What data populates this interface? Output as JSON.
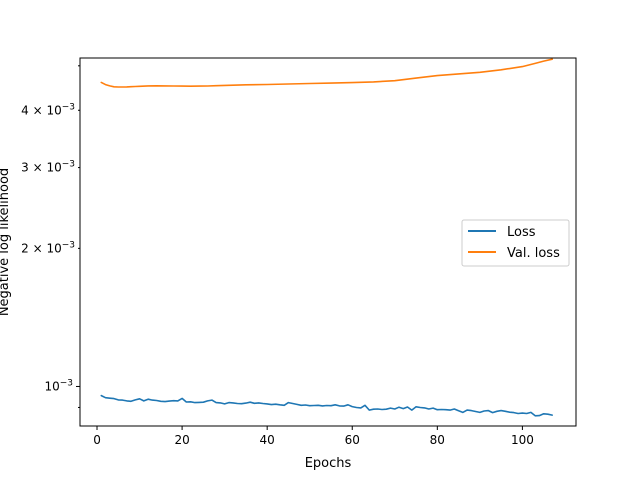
{
  "chart_data": {
    "type": "line",
    "xlabel": "Epochs",
    "ylabel": "Negative log likelihood",
    "y_scale": "log",
    "xlim": [
      -4,
      112.6
    ],
    "ylim": [
      0.00082,
      0.0052
    ],
    "x_ticks": [
      0,
      20,
      40,
      60,
      80,
      100
    ],
    "x_tick_labels": [
      "0",
      "20",
      "40",
      "60",
      "80",
      "100"
    ],
    "y_major_ticks": [
      0.001
    ],
    "y_major_labels": [
      "10",
      "−3"
    ],
    "y_minor_ticks": [
      0.0009,
      0.002,
      0.003,
      0.004,
      0.005
    ],
    "y_minor_labels": [
      {
        "value": 0.002,
        "mantissa": "2 × 10",
        "exp": "−3"
      },
      {
        "value": 0.003,
        "mantissa": "3 × 10",
        "exp": "−3"
      },
      {
        "value": 0.004,
        "mantissa": "4 × 10",
        "exp": "−3"
      }
    ],
    "legend_placement": "center-right",
    "grid": false,
    "series": [
      {
        "name": "Loss",
        "color": "#1f77b4",
        "x": [
          1,
          2,
          3,
          4,
          5,
          6,
          7,
          8,
          9,
          10,
          11,
          12,
          13,
          14,
          15,
          16,
          17,
          18,
          19,
          20,
          21,
          22,
          23,
          24,
          25,
          26,
          27,
          28,
          29,
          30,
          31,
          32,
          33,
          34,
          35,
          36,
          37,
          38,
          39,
          40,
          41,
          42,
          43,
          44,
          45,
          46,
          47,
          48,
          49,
          50,
          51,
          52,
          53,
          54,
          55,
          56,
          57,
          58,
          59,
          60,
          61,
          62,
          63,
          64,
          65,
          66,
          67,
          68,
          69,
          70,
          71,
          72,
          73,
          74,
          75,
          76,
          77,
          78,
          79,
          80,
          81,
          82,
          83,
          84,
          85,
          86,
          87,
          88,
          89,
          90,
          91,
          92,
          93,
          94,
          95,
          96,
          97,
          98,
          99,
          100,
          101,
          102,
          103,
          104,
          105,
          106,
          107
        ],
        "values": [
          0.000955,
          0.000945,
          0.000943,
          0.000941,
          0.000935,
          0.000934,
          0.00093,
          0.000928,
          0.000935,
          0.00094,
          0.00093,
          0.000938,
          0.000934,
          0.000932,
          0.000928,
          0.000927,
          0.000929,
          0.000931,
          0.00093,
          0.000942,
          0.000925,
          0.000926,
          0.000922,
          0.000923,
          0.000924,
          0.00093,
          0.000934,
          0.000922,
          0.000921,
          0.000916,
          0.000922,
          0.000921,
          0.000918,
          0.000917,
          0.00092,
          0.000924,
          0.000919,
          0.000921,
          0.000918,
          0.000916,
          0.000913,
          0.000915,
          0.000912,
          0.00091,
          0.000922,
          0.000918,
          0.000914,
          0.00091,
          0.000911,
          0.000908,
          0.000909,
          0.00091,
          0.000907,
          0.000909,
          0.000908,
          0.000912,
          0.000907,
          0.000906,
          0.000912,
          0.000904,
          0.0009,
          0.000898,
          0.00091,
          0.000888,
          0.000892,
          0.000893,
          0.000891,
          0.000892,
          0.000897,
          0.000893,
          0.000901,
          0.000895,
          0.000902,
          0.000888,
          0.000903,
          0.0009,
          0.000898,
          0.000893,
          0.000897,
          0.00089,
          0.000891,
          0.00089,
          0.000888,
          0.000893,
          0.000885,
          0.000878,
          0.000888,
          0.000886,
          0.000882,
          0.000878,
          0.000884,
          0.000886,
          0.000877,
          0.000883,
          0.000886,
          0.000883,
          0.000879,
          0.000877,
          0.000873,
          0.000875,
          0.000873,
          0.000878,
          0.000863,
          0.000864,
          0.000872,
          0.00087,
          0.000866
        ]
      },
      {
        "name": "Val. loss",
        "color": "#ff7f0e",
        "x": [
          1,
          2,
          3,
          4,
          5,
          6,
          7,
          8,
          9,
          10,
          12,
          14,
          16,
          18,
          20,
          22,
          24,
          26,
          28,
          30,
          35,
          40,
          45,
          50,
          55,
          60,
          65,
          70,
          75,
          80,
          85,
          90,
          95,
          100,
          103,
          105,
          107
        ],
        "values": [
          0.0046,
          0.00455,
          0.00452,
          0.0045,
          0.004495,
          0.004495,
          0.004498,
          0.004502,
          0.004507,
          0.004512,
          0.00452,
          0.004522,
          0.00452,
          0.004518,
          0.004515,
          0.004513,
          0.004515,
          0.004518,
          0.004525,
          0.004532,
          0.004545,
          0.004552,
          0.004563,
          0.004575,
          0.004585,
          0.004597,
          0.004612,
          0.00464,
          0.0047,
          0.00476,
          0.0048,
          0.00484,
          0.0049,
          0.00498,
          0.00506,
          0.00512,
          0.00517
        ]
      }
    ]
  }
}
